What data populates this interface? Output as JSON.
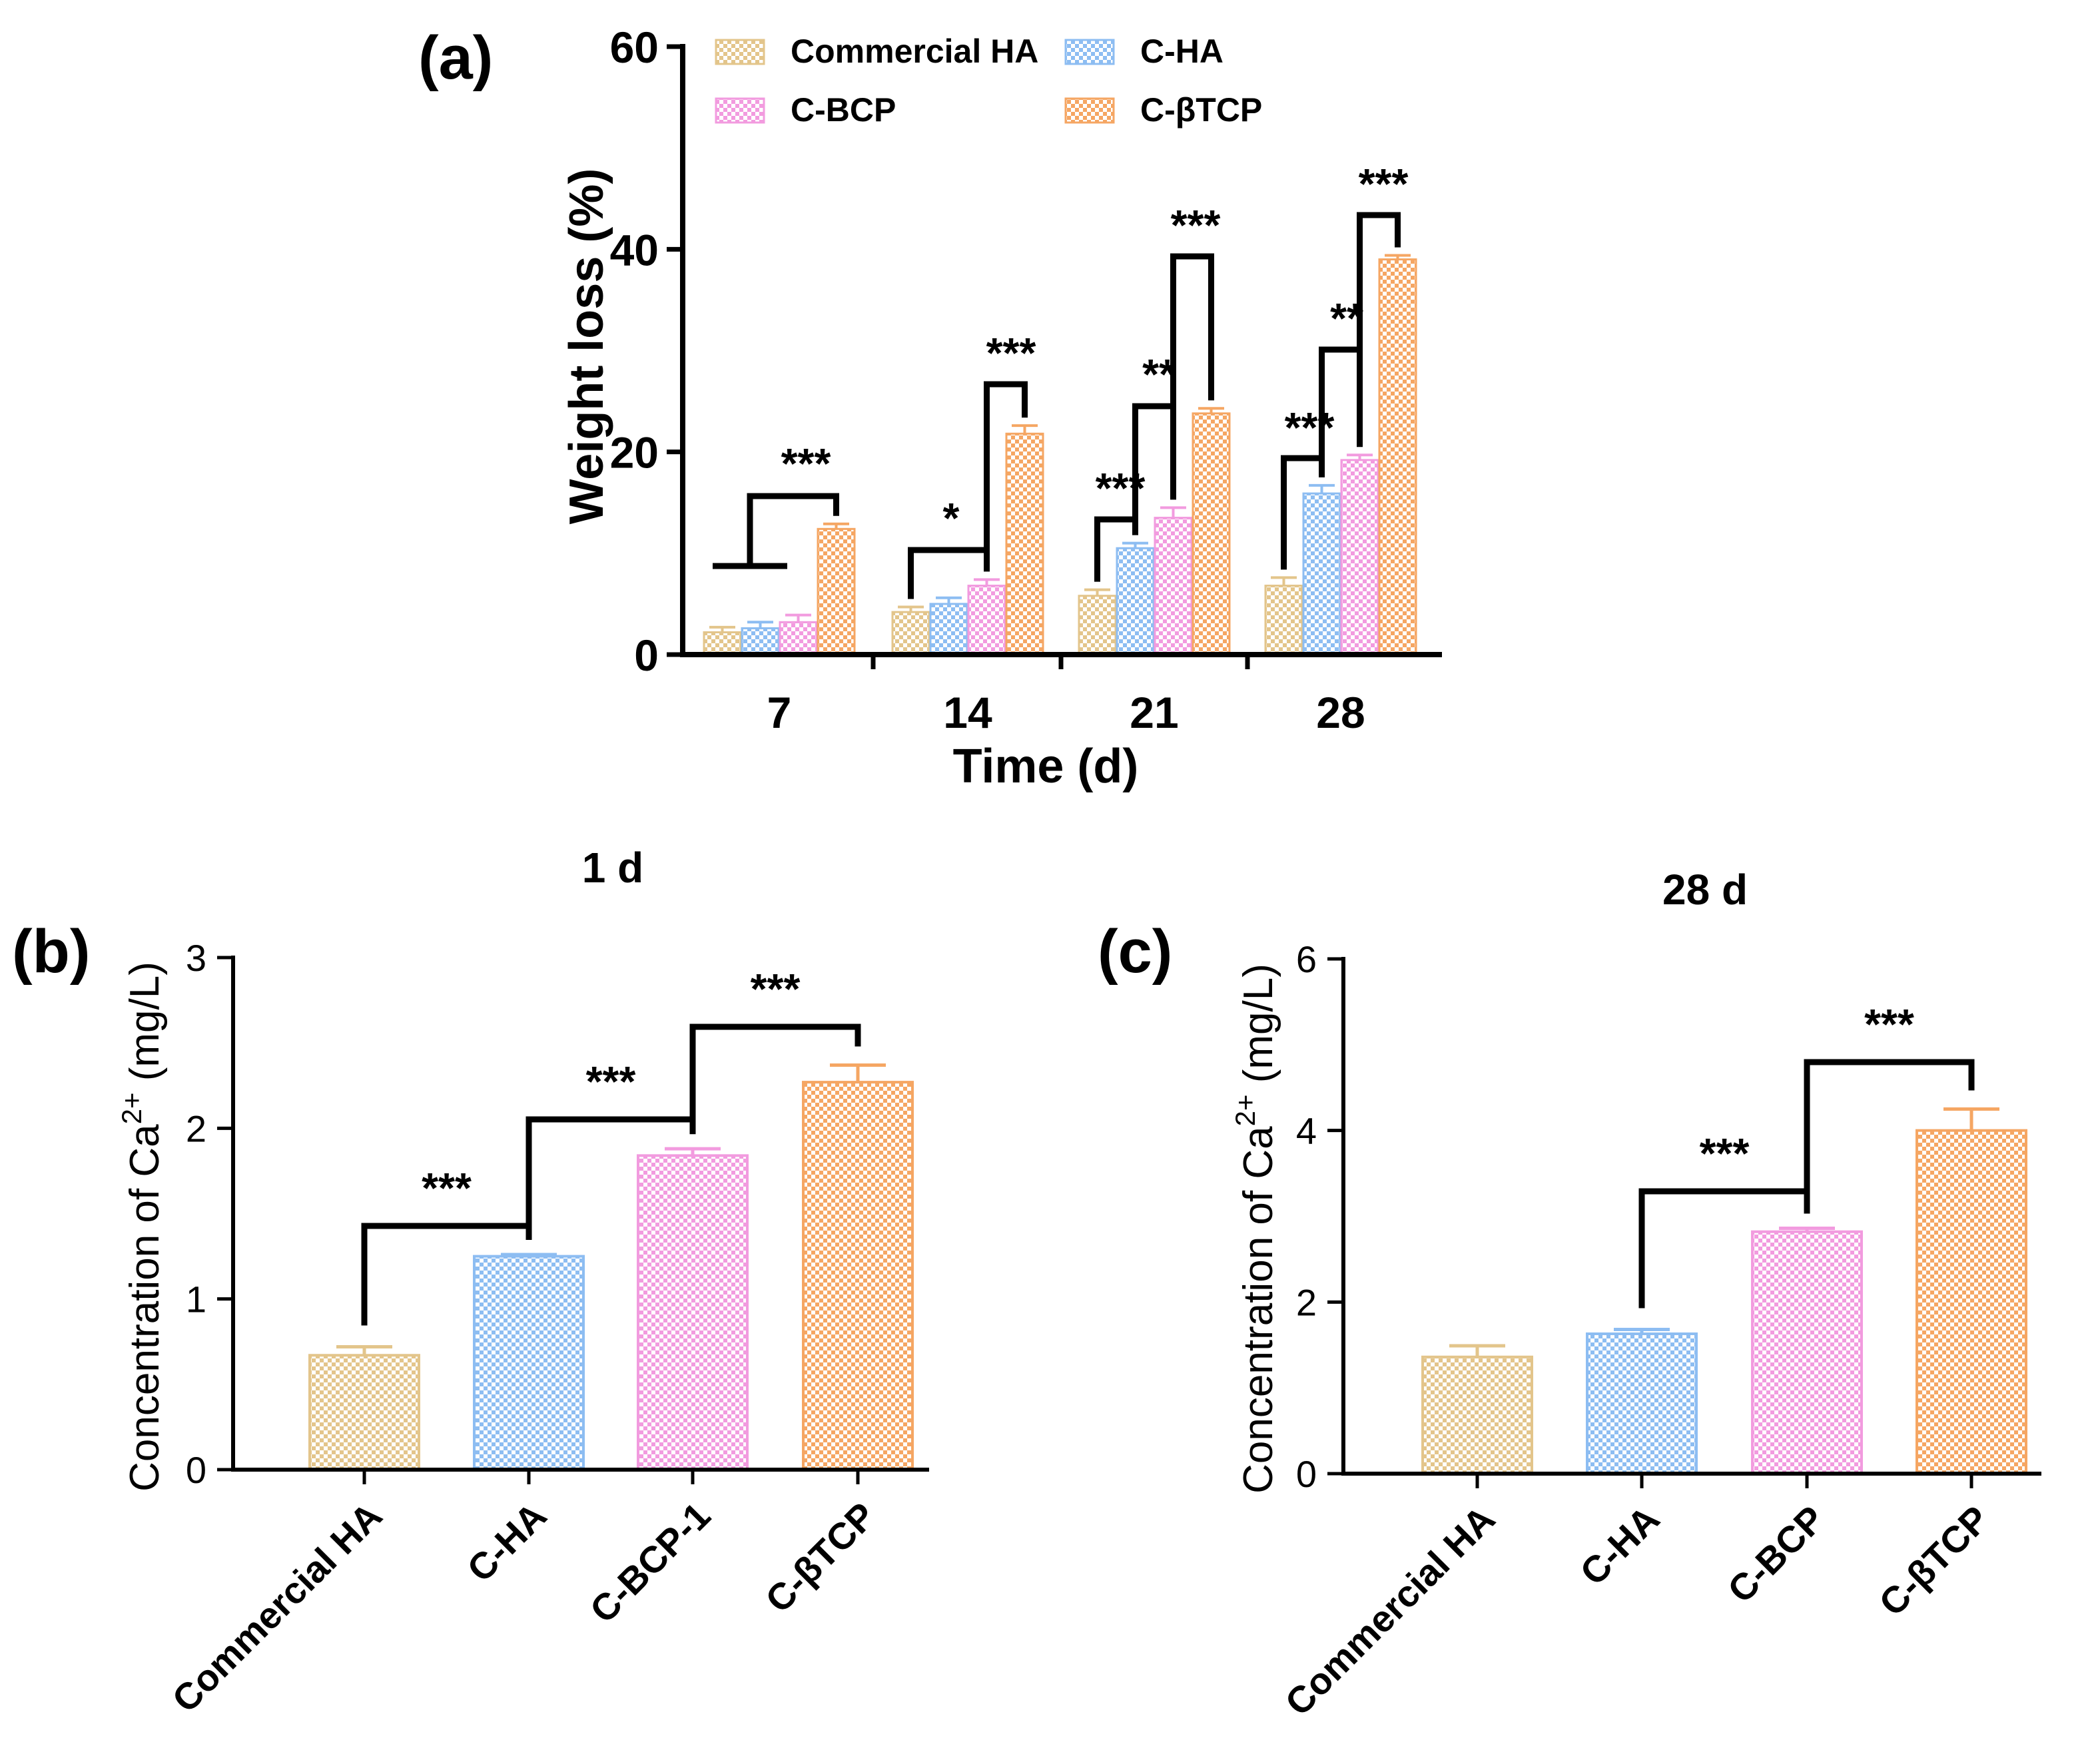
{
  "chart_data": [
    {
      "panel": "(a)",
      "type": "bar",
      "title": "",
      "xlabel": "Time (d)",
      "ylabel": "Weight loss (%)",
      "ylim": [
        0,
        60
      ],
      "yticks": [
        "0",
        "20",
        "40",
        "60"
      ],
      "categories": [
        "7",
        "14",
        "21",
        "28"
      ],
      "legend_position": "top",
      "series": [
        {
          "name": "Commercial HA",
          "color": "#E3C58B",
          "values": [
            2.2,
            4.2,
            5.8,
            6.8
          ],
          "errors": [
            0.5,
            0.5,
            0.6,
            0.8
          ]
        },
        {
          "name": "C-HA",
          "color": "#8DBDF2",
          "values": [
            2.6,
            5.0,
            10.5,
            15.9
          ],
          "errors": [
            0.6,
            0.6,
            0.5,
            0.8
          ]
        },
        {
          "name": "C-BCP",
          "color": "#F29BDF",
          "values": [
            3.2,
            6.8,
            13.5,
            19.2
          ],
          "errors": [
            0.7,
            0.6,
            1.0,
            0.5
          ]
        },
        {
          "name": "C-βTCP",
          "color": "#F5A663",
          "values": [
            12.4,
            21.8,
            23.8,
            39.0
          ],
          "errors": [
            0.5,
            0.8,
            0.5,
            0.4
          ]
        }
      ],
      "significance": [
        "***",
        "*",
        "***",
        "***",
        "**",
        "***",
        "***",
        "**",
        "***"
      ]
    },
    {
      "panel": "(b)",
      "type": "bar",
      "title": "1 d",
      "xlabel": "",
      "ylabel": "Concentration of Ca",
      "ylabel_sup": "2+",
      "ylabel_unit": " (mg/L)",
      "ylim": [
        0,
        3
      ],
      "yticks": [
        "0",
        "1",
        "2",
        "3"
      ],
      "categories": [
        "Commercial HA",
        "C-HA",
        "C-BCP-1",
        "C-βTCP"
      ],
      "colors": [
        "#E3C58B",
        "#8DBDF2",
        "#F29BDF",
        "#F5A663"
      ],
      "values": [
        0.67,
        1.25,
        1.84,
        2.27
      ],
      "errors": [
        0.05,
        0.01,
        0.04,
        0.1
      ],
      "significance": [
        "***",
        "***",
        "***"
      ]
    },
    {
      "panel": "(c)",
      "type": "bar",
      "title": "28 d",
      "xlabel": "",
      "ylabel": "Concentration of Ca",
      "ylabel_sup": "2+",
      "ylabel_unit": " (mg/L)",
      "ylim": [
        0,
        6
      ],
      "yticks": [
        "0",
        "2",
        "4",
        "6"
      ],
      "categories": [
        "Commercial HA",
        "C-HA",
        "C-BCP",
        "C-βTCP"
      ],
      "colors": [
        "#E3C58B",
        "#8DBDF2",
        "#F29BDF",
        "#F5A663"
      ],
      "values": [
        1.36,
        1.63,
        2.82,
        4.0
      ],
      "errors": [
        0.13,
        0.05,
        0.04,
        0.25
      ],
      "significance": [
        "***",
        "***"
      ]
    }
  ]
}
